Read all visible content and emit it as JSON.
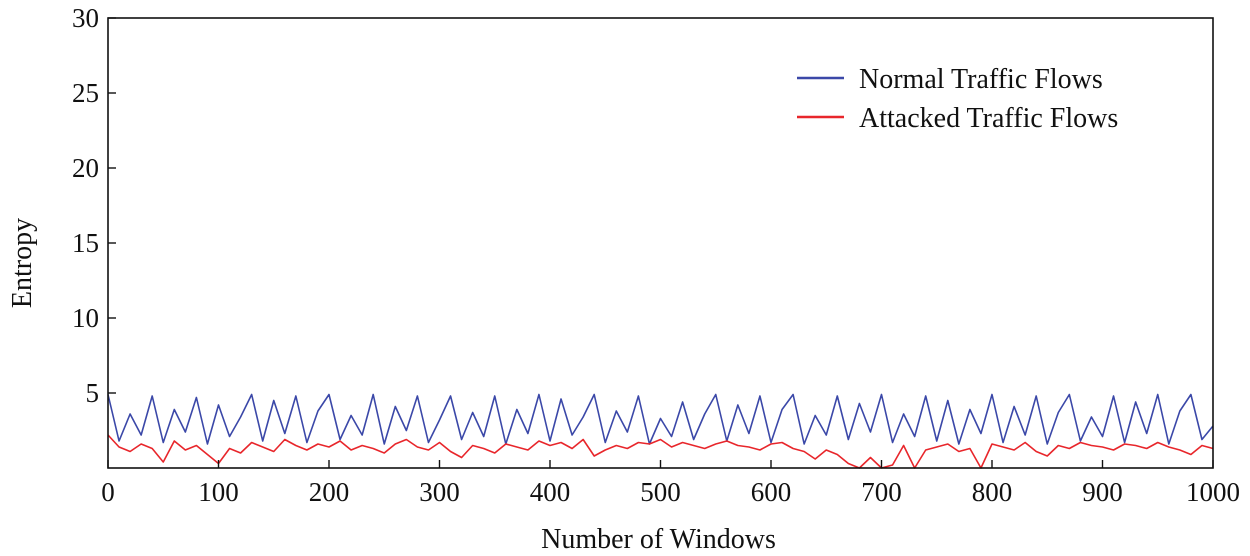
{
  "chart_data": {
    "type": "line",
    "title": "",
    "xlabel": "Number of Windows",
    "ylabel": "Entropy",
    "xlim": [
      0,
      1000
    ],
    "ylim": [
      0,
      30
    ],
    "xticks": [
      0,
      100,
      200,
      300,
      400,
      500,
      600,
      700,
      800,
      900,
      1000
    ],
    "xtick_labels": [
      "0",
      "100",
      "200",
      "300",
      "400",
      "500",
      "600",
      "700",
      "800",
      "900",
      "1000"
    ],
    "yticks": [
      5,
      10,
      15,
      20,
      25,
      30
    ],
    "ytick_labels": [
      "5",
      "10",
      "15",
      "20",
      "25",
      "30"
    ],
    "grid": false,
    "legend_position": "top-right",
    "series": [
      {
        "name": "Normal Traffic Flows",
        "color": "#3b48a8",
        "x": [
          0,
          10,
          20,
          30,
          40,
          50,
          60,
          70,
          80,
          90,
          100,
          110,
          120,
          130,
          140,
          150,
          160,
          170,
          180,
          190,
          200,
          210,
          220,
          230,
          240,
          250,
          260,
          270,
          280,
          290,
          300,
          310,
          320,
          330,
          340,
          350,
          360,
          370,
          380,
          390,
          400,
          410,
          420,
          430,
          440,
          450,
          460,
          470,
          480,
          490,
          500,
          510,
          520,
          530,
          540,
          550,
          560,
          570,
          580,
          590,
          600,
          610,
          620,
          630,
          640,
          650,
          660,
          670,
          680,
          690,
          700,
          710,
          720,
          730,
          740,
          750,
          760,
          770,
          780,
          790,
          800,
          810,
          820,
          830,
          840,
          850,
          860,
          870,
          880,
          890,
          900,
          910,
          920,
          930,
          940,
          950,
          960,
          970,
          980,
          990,
          1000
        ],
        "values": [
          4.9,
          1.8,
          3.6,
          2.2,
          4.8,
          1.7,
          3.9,
          2.4,
          4.7,
          1.6,
          4.2,
          2.1,
          3.4,
          4.9,
          1.8,
          4.5,
          2.3,
          4.8,
          1.7,
          3.8,
          4.9,
          1.9,
          3.5,
          2.2,
          4.9,
          1.6,
          4.1,
          2.5,
          4.8,
          1.7,
          3.2,
          4.8,
          1.9,
          3.7,
          2.1,
          4.8,
          1.6,
          3.9,
          2.3,
          4.9,
          1.8,
          4.6,
          2.2,
          3.4,
          4.9,
          1.7,
          3.8,
          2.4,
          4.8,
          1.6,
          3.3,
          2.1,
          4.4,
          1.9,
          3.6,
          4.9,
          1.8,
          4.2,
          2.3,
          4.8,
          1.7,
          3.9,
          4.9,
          1.6,
          3.5,
          2.2,
          4.8,
          1.9,
          4.3,
          2.4,
          4.9,
          1.7,
          3.6,
          2.1,
          4.8,
          1.8,
          4.5,
          1.6,
          3.9,
          2.3,
          4.9,
          1.7,
          4.1,
          2.2,
          4.8,
          1.6,
          3.7,
          4.9,
          1.8,
          3.4,
          2.1,
          4.8,
          1.7,
          4.4,
          2.3,
          4.9,
          1.6,
          3.8,
          4.9,
          1.9,
          2.8
        ]
      },
      {
        "name": "Attacked Traffic Flows",
        "color": "#e8262b",
        "x": [
          0,
          10,
          20,
          30,
          40,
          50,
          60,
          70,
          80,
          90,
          100,
          110,
          120,
          130,
          140,
          150,
          160,
          170,
          180,
          190,
          200,
          210,
          220,
          230,
          240,
          250,
          260,
          270,
          280,
          290,
          300,
          310,
          320,
          330,
          340,
          350,
          360,
          370,
          380,
          390,
          400,
          410,
          420,
          430,
          440,
          450,
          460,
          470,
          480,
          490,
          500,
          510,
          520,
          530,
          540,
          550,
          560,
          570,
          580,
          590,
          600,
          610,
          620,
          630,
          640,
          650,
          660,
          670,
          680,
          690,
          700,
          710,
          720,
          730,
          740,
          750,
          760,
          770,
          780,
          790,
          800,
          810,
          820,
          830,
          840,
          850,
          860,
          870,
          880,
          890,
          900,
          910,
          920,
          930,
          940,
          950,
          960,
          970,
          980,
          990,
          1000
        ],
        "values": [
          2.2,
          1.4,
          1.1,
          1.6,
          1.3,
          0.4,
          1.8,
          1.2,
          1.5,
          0.9,
          0.3,
          1.3,
          1.0,
          1.7,
          1.4,
          1.1,
          1.9,
          1.5,
          1.2,
          1.6,
          1.4,
          1.8,
          1.2,
          1.5,
          1.3,
          1.0,
          1.6,
          1.9,
          1.4,
          1.2,
          1.7,
          1.1,
          0.7,
          1.5,
          1.3,
          1.0,
          1.6,
          1.4,
          1.2,
          1.8,
          1.5,
          1.7,
          1.3,
          1.9,
          0.8,
          1.2,
          1.5,
          1.3,
          1.7,
          1.6,
          1.9,
          1.4,
          1.7,
          1.5,
          1.3,
          1.6,
          1.8,
          1.5,
          1.4,
          1.2,
          1.6,
          1.7,
          1.3,
          1.1,
          0.6,
          1.2,
          0.9,
          0.3,
          0.0,
          0.7,
          0.0,
          0.2,
          1.5,
          0.0,
          1.2,
          1.4,
          1.6,
          1.1,
          1.3,
          0.0,
          1.6,
          1.4,
          1.2,
          1.7,
          1.1,
          0.8,
          1.5,
          1.3,
          1.7,
          1.5,
          1.4,
          1.2,
          1.6,
          1.5,
          1.3,
          1.7,
          1.4,
          1.2,
          0.9,
          1.5,
          1.3
        ]
      }
    ]
  }
}
